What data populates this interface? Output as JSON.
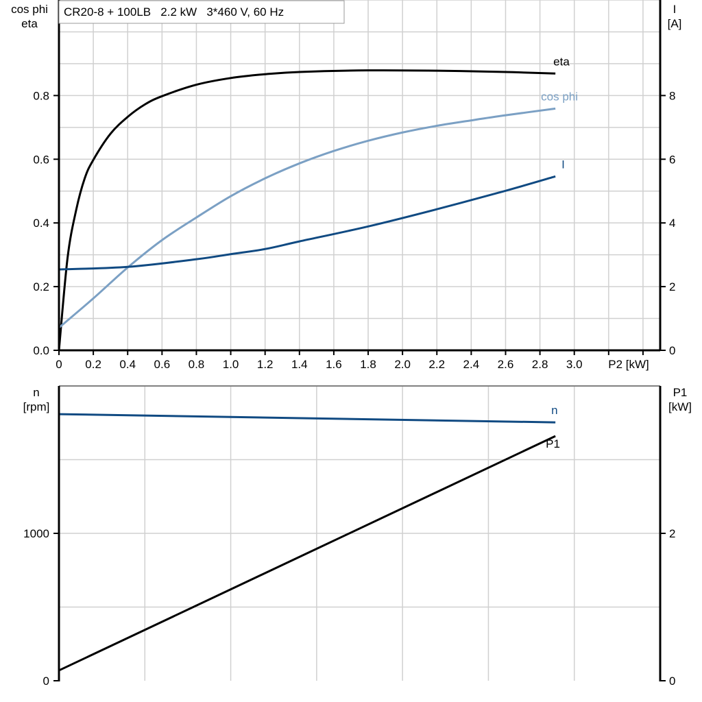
{
  "chart_data": [
    {
      "type": "line",
      "title": "CR20-8 + 100LB   2.2 kW   3*460 V, 60 Hz",
      "xlabel": "P2 [kW]",
      "ylabel_left": [
        "cos phi",
        "eta"
      ],
      "ylabel_right": [
        "I",
        "[A]"
      ],
      "xlim": [
        0,
        3.5
      ],
      "ylim_left": [
        0,
        1.1
      ],
      "ylim_right": [
        0,
        11
      ],
      "grid": true,
      "x_ticks": [
        "0",
        "0.2",
        "0.4",
        "0.6",
        "0.8",
        "1.0",
        "1.2",
        "1.4",
        "1.6",
        "1.8",
        "2.0",
        "2.2",
        "2.4",
        "2.6",
        "2.8",
        "3.0"
      ],
      "y_ticks_left": [
        "0.0",
        "0.2",
        "0.4",
        "0.6",
        "0.8"
      ],
      "y_ticks_right": [
        "0",
        "2",
        "4",
        "6",
        "8"
      ],
      "series": [
        {
          "name": "eta",
          "axis": "left",
          "color": "#000000",
          "x": [
            0,
            0.05,
            0.1,
            0.15,
            0.2,
            0.3,
            0.4,
            0.5,
            0.6,
            0.8,
            1.0,
            1.2,
            1.4,
            1.8,
            2.2,
            2.6,
            2.89
          ],
          "y": [
            0,
            0.29,
            0.44,
            0.54,
            0.598,
            0.68,
            0.733,
            0.772,
            0.798,
            0.834,
            0.855,
            0.867,
            0.874,
            0.879,
            0.878,
            0.874,
            0.869
          ]
        },
        {
          "name": "cos phi",
          "axis": "left",
          "color": "#7ba0c4",
          "x": [
            0,
            0.2,
            0.4,
            0.6,
            0.8,
            1.0,
            1.2,
            1.4,
            1.6,
            1.8,
            2.0,
            2.2,
            2.4,
            2.6,
            2.89
          ],
          "y": [
            0.071,
            0.163,
            0.26,
            0.346,
            0.417,
            0.484,
            0.54,
            0.587,
            0.626,
            0.658,
            0.684,
            0.705,
            0.722,
            0.738,
            0.759
          ]
        },
        {
          "name": "I",
          "axis": "right",
          "color": "#104a82",
          "x": [
            0,
            0.4,
            0.8,
            1.0,
            1.2,
            1.4,
            1.8,
            2.2,
            2.6,
            2.89
          ],
          "y": [
            2.54,
            2.62,
            2.86,
            3.02,
            3.18,
            3.42,
            3.89,
            4.43,
            5.01,
            5.46
          ]
        }
      ]
    },
    {
      "type": "line",
      "xlim": [
        0,
        3.5
      ],
      "ylabel_left": [
        "n",
        "[rpm]"
      ],
      "ylabel_right": [
        "P1",
        "[kW]"
      ],
      "ylim_left": [
        0,
        2000
      ],
      "ylim_right": [
        0,
        4
      ],
      "grid": true,
      "y_ticks_left": [
        "0",
        "1000"
      ],
      "y_ticks_right": [
        "0",
        "2"
      ],
      "series": [
        {
          "name": "n",
          "axis": "left",
          "color": "#104a82",
          "x": [
            0,
            2.89
          ],
          "y": [
            1809,
            1753
          ]
        },
        {
          "name": "P1",
          "axis": "right",
          "color": "#000000",
          "x": [
            0,
            2.89
          ],
          "y": [
            0.14,
            3.32
          ]
        }
      ]
    }
  ]
}
